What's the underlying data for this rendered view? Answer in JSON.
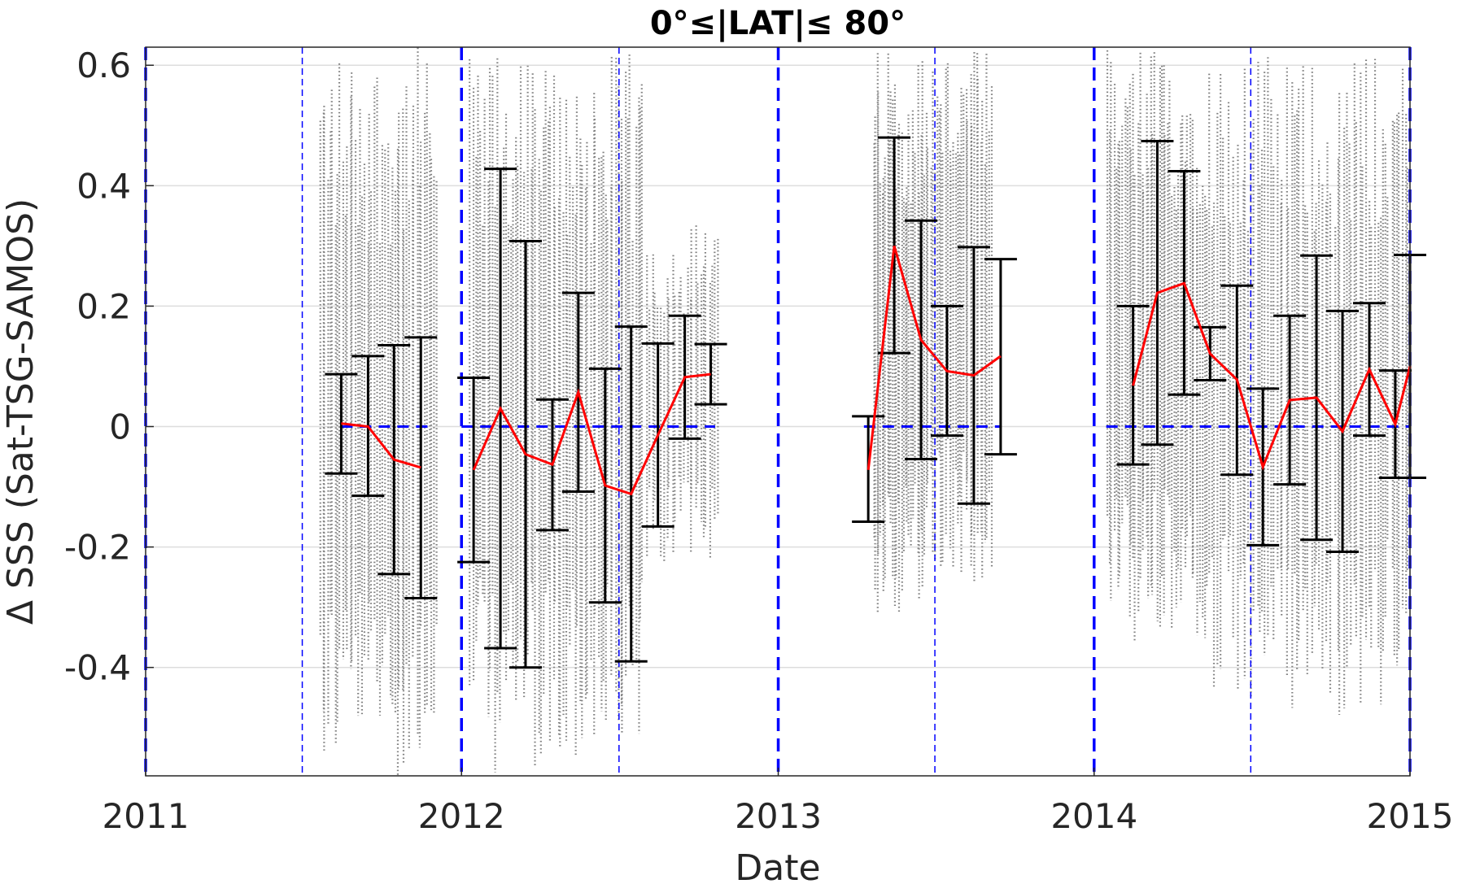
{
  "chart_data": {
    "type": "scatter",
    "title": "0°≤|LAT|≤ 80°",
    "xlabel": "Date",
    "ylabel": "Δ SSS (Sat-TSG-SAMOS)",
    "x_range": [
      "2011-01-01",
      "2015-01-01"
    ],
    "ylim": [
      -0.58,
      0.63
    ],
    "x_ticks": [
      {
        "date": "2011-01-01",
        "label": "2011"
      },
      {
        "date": "2012-01-01",
        "label": "2012"
      },
      {
        "date": "2013-01-01",
        "label": "2013"
      },
      {
        "date": "2014-01-01",
        "label": "2014"
      },
      {
        "date": "2015-01-01",
        "label": "2015"
      }
    ],
    "y_ticks": [
      {
        "value": 0.6,
        "label": "0.6"
      },
      {
        "value": 0.4,
        "label": "0.4"
      },
      {
        "value": 0.2,
        "label": "0.2"
      },
      {
        "value": 0,
        "label": "0"
      },
      {
        "value": -0.2,
        "label": "-0.2"
      },
      {
        "value": -0.4,
        "label": "-0.4"
      }
    ],
    "grid": "horizontal",
    "year_lines": [
      "2011-01-01",
      "2012-01-01",
      "2013-01-01",
      "2014-01-01",
      "2015-01-01"
    ],
    "mid_year_lines": [
      "2011-07-01",
      "2012-07-01",
      "2013-07-01",
      "2014-07-01"
    ],
    "zero_segments": [
      {
        "start": "2011-08-15",
        "end": "2011-11-25"
      },
      {
        "start": "2012-01-01",
        "end": "2012-10-20"
      },
      {
        "start": "2013-04-10",
        "end": "2013-09-15"
      },
      {
        "start": "2014-01-15",
        "end": "2015-01-01"
      }
    ],
    "monthly_series": {
      "name": "monthly mean",
      "color": "#ff0000",
      "segments": [
        [
          {
            "date": "2011-08-15",
            "mean": 0.005,
            "std_low": -0.078,
            "std_high": 0.087
          },
          {
            "date": "2011-09-15",
            "mean": 0.0,
            "std_low": -0.115,
            "std_high": 0.117
          },
          {
            "date": "2011-10-15",
            "mean": -0.055,
            "std_low": -0.245,
            "std_high": 0.135
          },
          {
            "date": "2011-11-15",
            "mean": -0.068,
            "std_low": -0.285,
            "std_high": 0.148
          }
        ],
        [
          {
            "date": "2012-01-15",
            "mean": -0.072,
            "std_low": -0.225,
            "std_high": 0.081
          },
          {
            "date": "2012-02-15",
            "mean": 0.03,
            "std_low": -0.368,
            "std_high": 0.428
          },
          {
            "date": "2012-03-15",
            "mean": -0.046,
            "std_low": -0.4,
            "std_high": 0.308
          },
          {
            "date": "2012-04-15",
            "mean": -0.063,
            "std_low": -0.172,
            "std_high": 0.045
          },
          {
            "date": "2012-05-15",
            "mean": 0.057,
            "std_low": -0.108,
            "std_high": 0.222
          },
          {
            "date": "2012-06-15",
            "mean": -0.098,
            "std_low": -0.292,
            "std_high": 0.096
          },
          {
            "date": "2012-07-15",
            "mean": -0.112,
            "std_low": -0.39,
            "std_high": 0.166
          },
          {
            "date": "2012-08-15",
            "mean": -0.014,
            "std_low": -0.166,
            "std_high": 0.138
          },
          {
            "date": "2012-09-15",
            "mean": 0.082,
            "std_low": -0.02,
            "std_high": 0.184
          },
          {
            "date": "2012-10-15",
            "mean": 0.087,
            "std_low": 0.037,
            "std_high": 0.137
          }
        ],
        [
          {
            "date": "2013-04-15",
            "mean": -0.072,
            "std_low": -0.158,
            "std_high": 0.017
          },
          {
            "date": "2013-05-15",
            "mean": 0.3,
            "std_low": 0.122,
            "std_high": 0.48
          },
          {
            "date": "2013-06-15",
            "mean": 0.144,
            "std_low": -0.054,
            "std_high": 0.342
          },
          {
            "date": "2013-07-15",
            "mean": 0.092,
            "std_low": -0.015,
            "std_high": 0.2
          },
          {
            "date": "2013-08-15",
            "mean": 0.085,
            "std_low": -0.128,
            "std_high": 0.298
          },
          {
            "date": "2013-09-15",
            "mean": 0.117,
            "std_low": -0.046,
            "std_high": 0.278
          }
        ],
        [
          {
            "date": "2014-02-15",
            "mean": 0.068,
            "std_low": -0.063,
            "std_high": 0.2
          },
          {
            "date": "2014-03-15",
            "mean": 0.222,
            "std_low": -0.03,
            "std_high": 0.474
          },
          {
            "date": "2014-04-15",
            "mean": 0.238,
            "std_low": 0.053,
            "std_high": 0.424
          },
          {
            "date": "2014-05-15",
            "mean": 0.121,
            "std_low": 0.077,
            "std_high": 0.165
          },
          {
            "date": "2014-06-15",
            "mean": 0.078,
            "std_low": -0.08,
            "std_high": 0.234
          },
          {
            "date": "2014-07-15",
            "mean": -0.067,
            "std_low": -0.197,
            "std_high": 0.063
          },
          {
            "date": "2014-08-15",
            "mean": 0.044,
            "std_low": -0.096,
            "std_high": 0.184
          },
          {
            "date": "2014-09-15",
            "mean": 0.048,
            "std_low": -0.188,
            "std_high": 0.284
          },
          {
            "date": "2014-10-15",
            "mean": -0.008,
            "std_low": -0.208,
            "std_high": 0.192
          },
          {
            "date": "2014-11-15",
            "mean": 0.095,
            "std_low": -0.015,
            "std_high": 0.205
          },
          {
            "date": "2014-12-15",
            "mean": 0.004,
            "std_low": -0.085,
            "std_high": 0.093
          },
          {
            "date": "2015-01-01",
            "mean": 0.1,
            "std_low": -0.085,
            "std_high": 0.285
          }
        ]
      ]
    },
    "scatter_bands": [
      {
        "start": "2011-07-20",
        "end": "2011-12-05",
        "low": -0.58,
        "high": 0.63,
        "lines": 48
      },
      {
        "start": "2012-01-10",
        "end": "2012-07-30",
        "low": -0.58,
        "high": 0.62,
        "lines": 70
      },
      {
        "start": "2012-08-01",
        "end": "2012-10-25",
        "low": -0.24,
        "high": 0.34,
        "lines": 26
      },
      {
        "start": "2013-04-20",
        "end": "2013-06-20",
        "low": -0.32,
        "high": 0.63,
        "lines": 30
      },
      {
        "start": "2013-06-20",
        "end": "2013-09-05",
        "low": -0.26,
        "high": 0.63,
        "lines": 32
      },
      {
        "start": "2014-01-15",
        "end": "2014-05-15",
        "low": -0.38,
        "high": 0.63,
        "lines": 48
      },
      {
        "start": "2014-05-15",
        "end": "2015-01-01",
        "low": -0.48,
        "high": 0.62,
        "lines": 70
      }
    ],
    "colors": {
      "scatter": "#808080",
      "errorbar": "#000000",
      "mean": "#ff0000",
      "zero_line": "#0000ff",
      "year_line": "#0000ff",
      "grid": "#dddddd"
    }
  }
}
